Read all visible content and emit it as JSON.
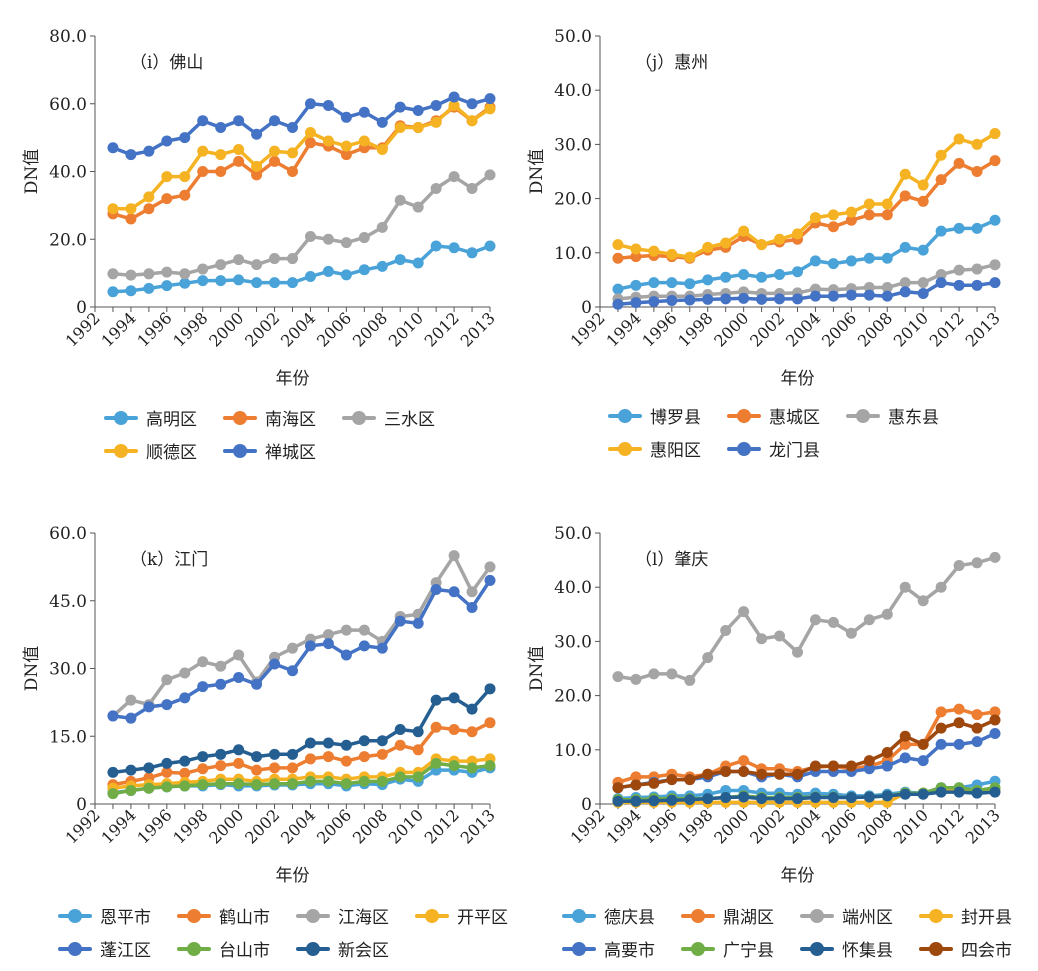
{
  "chart_data": [
    {
      "type": "line",
      "panel_label": "（i）佛山",
      "xlabel": "年份",
      "ylabel": "DN值",
      "ylim": [
        0,
        80
      ],
      "yticks": [
        "0",
        "20.0",
        "40.0",
        "60.0",
        "80.0"
      ],
      "xticks": [
        "1992",
        "1994",
        "1996",
        "1998",
        "2000",
        "2002",
        "2004",
        "2006",
        "2008",
        "2010",
        "2012",
        "2013"
      ],
      "legend_position": "bottom",
      "legend_columns": 3,
      "x": [
        1993,
        1994,
        1995,
        1996,
        1997,
        1998,
        1999,
        2000,
        2001,
        2002,
        2003,
        2004,
        2005,
        2006,
        2007,
        2008,
        2009,
        2010,
        2011,
        2012,
        2013,
        2014
      ],
      "series": [
        {
          "name": "高明区",
          "color": "#4aa3d8",
          "values": [
            4.5,
            4.8,
            5.5,
            6.3,
            7.0,
            7.8,
            7.8,
            8.0,
            7.2,
            7.2,
            7.2,
            9.0,
            10.5,
            9.5,
            11.0,
            12.0,
            14.0,
            13.0,
            18.0,
            17.5,
            16.0,
            18.0
          ]
        },
        {
          "name": "南海区",
          "color": "#ed7d31",
          "values": [
            27.5,
            26.0,
            29.0,
            32.0,
            33.0,
            40.0,
            40.0,
            43.0,
            39.0,
            43.0,
            40.0,
            48.5,
            47.5,
            45.0,
            47.0,
            47.0,
            53.5,
            53.0,
            55.0,
            59.0,
            55.0,
            59.0
          ]
        },
        {
          "name": "三水区",
          "color": "#a5a5a5",
          "values": [
            9.8,
            9.4,
            9.8,
            10.3,
            9.8,
            11.2,
            12.5,
            14.0,
            12.5,
            14.3,
            14.3,
            20.8,
            20.0,
            19.0,
            20.5,
            23.5,
            31.5,
            29.5,
            35.0,
            38.5,
            35.0,
            39.0
          ]
        },
        {
          "name": "顺德区",
          "color": "#f5b323",
          "values": [
            29.0,
            29.0,
            32.5,
            38.5,
            38.5,
            46.0,
            45.0,
            46.5,
            41.5,
            46.0,
            45.5,
            51.5,
            49.0,
            47.5,
            49.0,
            46.5,
            53.0,
            53.0,
            54.5,
            59.5,
            55.0,
            58.5
          ]
        },
        {
          "name": "禅城区",
          "color": "#4472c4",
          "values": [
            47.0,
            45.0,
            46.0,
            49.0,
            50.0,
            55.0,
            53.0,
            55.0,
            51.0,
            55.0,
            53.0,
            60.0,
            59.5,
            56.0,
            57.5,
            54.5,
            59.0,
            58.0,
            59.5,
            62.0,
            60.0,
            61.5
          ]
        }
      ]
    },
    {
      "type": "line",
      "panel_label": "（j）惠州",
      "xlabel": "年份",
      "ylabel": "DN值",
      "ylim": [
        0,
        50
      ],
      "yticks": [
        "0",
        "10.0",
        "20.0",
        "30.0",
        "40.0",
        "50.0"
      ],
      "xticks": [
        "1992",
        "1994",
        "1996",
        "1998",
        "2000",
        "2002",
        "2004",
        "2006",
        "2008",
        "2010",
        "2012",
        "2013"
      ],
      "legend_position": "bottom",
      "legend_columns": 3,
      "x": [
        1993,
        1994,
        1995,
        1996,
        1997,
        1998,
        1999,
        2000,
        2001,
        2002,
        2003,
        2004,
        2005,
        2006,
        2007,
        2008,
        2009,
        2010,
        2011,
        2012,
        2013,
        2014
      ],
      "series": [
        {
          "name": "博罗县",
          "color": "#4aa3d8",
          "values": [
            3.3,
            4.0,
            4.5,
            4.5,
            4.3,
            5.0,
            5.5,
            6.0,
            5.5,
            6.0,
            6.5,
            8.5,
            8.0,
            8.5,
            9.0,
            9.0,
            11.0,
            10.5,
            14.0,
            14.5,
            14.5,
            16.0
          ]
        },
        {
          "name": "惠城区",
          "color": "#ed7d31",
          "values": [
            9.0,
            9.3,
            9.5,
            9.3,
            9.0,
            10.5,
            11.0,
            13.0,
            11.5,
            12.0,
            12.5,
            15.5,
            14.8,
            16.0,
            17.0,
            17.0,
            20.5,
            19.5,
            23.5,
            26.5,
            25.0,
            27.0
          ]
        },
        {
          "name": "惠东县",
          "color": "#a5a5a5",
          "values": [
            1.5,
            1.8,
            2.0,
            2.0,
            2.0,
            2.3,
            2.5,
            2.8,
            2.5,
            2.5,
            2.6,
            3.3,
            3.2,
            3.4,
            3.6,
            3.6,
            4.5,
            4.5,
            6.0,
            6.8,
            7.0,
            7.8
          ]
        },
        {
          "name": "惠阳区",
          "color": "#f5b323",
          "values": [
            11.5,
            10.7,
            10.3,
            9.7,
            9.2,
            11.0,
            11.8,
            14.0,
            11.5,
            12.5,
            13.5,
            16.5,
            17.0,
            17.5,
            19.0,
            19.0,
            24.5,
            22.5,
            28.0,
            31.0,
            30.0,
            32.0
          ]
        },
        {
          "name": "龙门县",
          "color": "#4472c4",
          "values": [
            0.5,
            0.8,
            1.0,
            1.2,
            1.3,
            1.4,
            1.5,
            1.6,
            1.4,
            1.5,
            1.5,
            2.0,
            2.0,
            2.2,
            2.2,
            2.0,
            2.8,
            2.5,
            4.5,
            4.0,
            4.0,
            4.5
          ]
        }
      ]
    },
    {
      "type": "line",
      "panel_label": "（k）江门",
      "xlabel": "年份",
      "ylabel": "DN值",
      "ylim": [
        0,
        60
      ],
      "yticks": [
        "0",
        "15.0",
        "30.0",
        "45.0",
        "60.0"
      ],
      "xticks": [
        "1992",
        "1994",
        "1996",
        "1998",
        "2000",
        "2002",
        "2004",
        "2006",
        "2008",
        "2010",
        "2012",
        "2013"
      ],
      "legend_position": "bottom",
      "legend_columns": 4,
      "x": [
        1993,
        1994,
        1995,
        1996,
        1997,
        1998,
        1999,
        2000,
        2001,
        2002,
        2003,
        2004,
        2005,
        2006,
        2007,
        2008,
        2009,
        2010,
        2011,
        2012,
        2013,
        2014
      ],
      "series": [
        {
          "name": "恩平市",
          "color": "#4aa3d8",
          "values": [
            2.5,
            3.0,
            3.5,
            3.8,
            4.0,
            4.0,
            4.3,
            4.0,
            4.0,
            4.2,
            4.2,
            4.5,
            4.5,
            4.0,
            4.5,
            4.3,
            5.5,
            5.0,
            7.5,
            7.5,
            7.0,
            8.0
          ]
        },
        {
          "name": "鹤山市",
          "color": "#ed7d31",
          "values": [
            4.3,
            5.0,
            5.8,
            7.0,
            6.8,
            7.8,
            8.5,
            9.0,
            7.5,
            8.0,
            8.0,
            10.0,
            10.5,
            9.5,
            10.5,
            11.0,
            13.0,
            12.0,
            17.0,
            16.5,
            16.0,
            18.0
          ]
        },
        {
          "name": "江海区",
          "color": "#a5a5a5",
          "values": [
            19.5,
            23.0,
            22.0,
            27.5,
            29.0,
            31.5,
            30.5,
            33.0,
            27.0,
            32.5,
            34.5,
            36.5,
            37.5,
            38.5,
            38.5,
            36.0,
            41.5,
            42.0,
            49.0,
            55.0,
            47.0,
            52.5
          ]
        },
        {
          "name": "开平区",
          "color": "#f5b323",
          "values": [
            3.5,
            4.0,
            4.3,
            4.5,
            4.8,
            5.0,
            5.5,
            5.5,
            5.0,
            5.5,
            5.5,
            6.0,
            6.0,
            5.5,
            6.0,
            6.0,
            7.0,
            7.0,
            10.0,
            9.5,
            9.5,
            10.0
          ]
        },
        {
          "name": "蓬江区",
          "color": "#4472c4",
          "values": [
            19.5,
            19.0,
            21.5,
            22.0,
            23.5,
            26.0,
            26.5,
            28.0,
            26.5,
            31.0,
            29.5,
            35.0,
            35.5,
            33.0,
            35.0,
            34.5,
            40.5,
            40.0,
            47.5,
            47.0,
            43.5,
            49.5
          ]
        },
        {
          "name": "台山市",
          "color": "#70ad47",
          "values": [
            2.3,
            3.0,
            3.5,
            3.8,
            4.0,
            4.3,
            4.5,
            4.5,
            4.3,
            4.5,
            4.5,
            5.0,
            5.0,
            4.5,
            5.0,
            5.0,
            6.0,
            6.0,
            9.0,
            8.5,
            8.0,
            8.5
          ]
        },
        {
          "name": "新会区",
          "color": "#255e91",
          "values": [
            7.0,
            7.5,
            8.0,
            9.0,
            9.5,
            10.5,
            11.0,
            12.0,
            10.5,
            11.0,
            11.0,
            13.5,
            13.5,
            13.0,
            14.0,
            14.0,
            16.5,
            16.0,
            23.0,
            23.5,
            21.0,
            25.5
          ]
        }
      ]
    },
    {
      "type": "line",
      "panel_label": "（l）肇庆",
      "xlabel": "年份",
      "ylabel": "DN值",
      "ylim": [
        0,
        50
      ],
      "yticks": [
        "0",
        "10.0",
        "20.0",
        "30.0",
        "40.0",
        "50.0"
      ],
      "xticks": [
        "1992",
        "1994",
        "1996",
        "1998",
        "2000",
        "2002",
        "2004",
        "2006",
        "2008",
        "2010",
        "2012",
        "2013"
      ],
      "legend_position": "bottom",
      "legend_columns": 4,
      "x": [
        1993,
        1994,
        1995,
        1996,
        1997,
        1998,
        1999,
        2000,
        2001,
        2002,
        2003,
        2004,
        2005,
        2006,
        2007,
        2008,
        2009,
        2010,
        2011,
        2012,
        2013,
        2014
      ],
      "series": [
        {
          "name": "德庆县",
          "color": "#4aa3d8",
          "values": [
            1.0,
            1.2,
            1.3,
            1.5,
            1.5,
            1.8,
            2.5,
            2.5,
            2.0,
            2.0,
            1.8,
            2.0,
            1.8,
            1.5,
            1.5,
            1.8,
            2.2,
            2.0,
            3.0,
            3.0,
            3.5,
            4.2
          ]
        },
        {
          "name": "鼎湖区",
          "color": "#ed7d31",
          "values": [
            4.0,
            5.0,
            5.0,
            5.5,
            5.0,
            5.5,
            7.0,
            8.0,
            6.5,
            6.5,
            6.0,
            6.8,
            7.0,
            6.5,
            7.0,
            8.0,
            11.0,
            11.0,
            17.0,
            17.5,
            16.5,
            17.0
          ]
        },
        {
          "name": "端州区",
          "color": "#a5a5a5",
          "values": [
            23.5,
            23.0,
            24.0,
            24.0,
            22.8,
            27.0,
            32.0,
            35.5,
            30.5,
            31.0,
            28.0,
            34.0,
            33.5,
            31.5,
            34.0,
            35.0,
            40.0,
            37.5,
            40.0,
            44.0,
            44.5,
            45.5
          ]
        },
        {
          "name": "封开县",
          "color": "#f5b323",
          "values": [
            0.3,
            0.3,
            0.3,
            0.3,
            0.3,
            0.3,
            0.3,
            0.3,
            0.3,
            0.3,
            0.3,
            0.3,
            0.3,
            0.3,
            0.3,
            0.3,
            2.0,
            2.0,
            2.5,
            2.5,
            2.3,
            2.5
          ]
        },
        {
          "name": "高要市",
          "color": "#4472c4",
          "values": [
            3.0,
            3.5,
            4.0,
            4.5,
            4.5,
            5.0,
            6.0,
            6.0,
            5.0,
            5.5,
            5.0,
            6.0,
            6.0,
            6.0,
            6.5,
            7.0,
            8.5,
            8.0,
            11.0,
            11.0,
            11.5,
            13.0
          ]
        },
        {
          "name": "广宁县",
          "color": "#70ad47",
          "values": [
            0.8,
            0.8,
            1.0,
            1.0,
            1.0,
            1.0,
            1.2,
            1.5,
            1.2,
            1.2,
            1.2,
            1.3,
            1.3,
            1.2,
            1.3,
            1.5,
            2.0,
            2.0,
            3.0,
            3.0,
            2.5,
            3.0
          ]
        },
        {
          "name": "怀集县",
          "color": "#255e91",
          "values": [
            0.5,
            0.5,
            0.6,
            0.7,
            0.8,
            1.0,
            1.2,
            1.3,
            1.0,
            1.0,
            1.0,
            1.2,
            1.2,
            1.2,
            1.3,
            1.5,
            1.8,
            1.8,
            2.2,
            2.2,
            2.0,
            2.2
          ]
        },
        {
          "name": "四会市",
          "color": "#9e480e",
          "values": [
            3.0,
            3.5,
            3.8,
            4.5,
            4.5,
            5.5,
            6.0,
            6.0,
            5.5,
            5.5,
            5.5,
            7.0,
            7.0,
            7.0,
            8.0,
            9.5,
            12.5,
            11.0,
            14.0,
            15.0,
            14.0,
            15.5
          ]
        }
      ]
    }
  ]
}
